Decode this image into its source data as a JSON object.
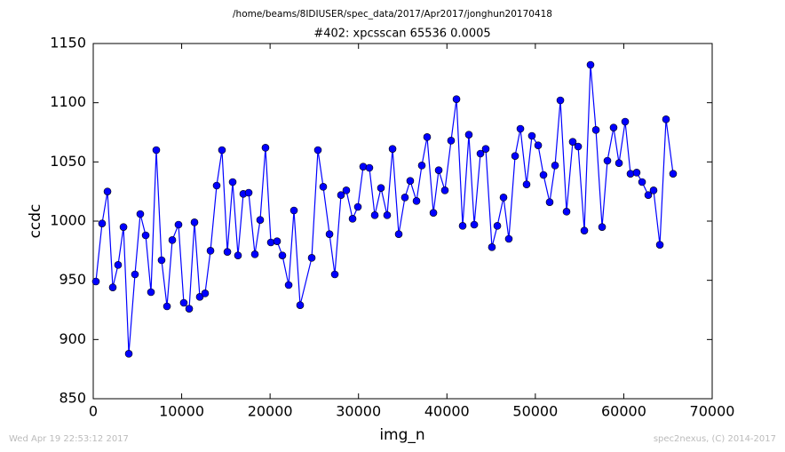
{
  "chart_data": {
    "type": "line",
    "header": "/home/beams/8IDIUSER/spec_data/2017/Apr2017/jonghun20170418",
    "title": "#402: xpcsscan 65536 0.0005",
    "xlabel": "img_n",
    "ylabel": "ccdc",
    "footer_left": "Wed Apr 19 22:53:12 2017",
    "footer_right": "spec2nexus, (C) 2014-2017",
    "xlim": [
      0,
      70000
    ],
    "xticks": [
      0,
      10000,
      20000,
      30000,
      40000,
      50000,
      60000,
      70000
    ],
    "ylim": [
      850,
      1150
    ],
    "yticks": [
      850,
      900,
      950,
      1000,
      1050,
      1100,
      1150
    ],
    "color": "#0000ff",
    "x": [
      300,
      1000,
      1610,
      2210,
      2810,
      3420,
      4020,
      4720,
      5320,
      5930,
      6530,
      7130,
      7730,
      8340,
      8940,
      9640,
      10240,
      10850,
      11450,
      12050,
      12650,
      13260,
      13960,
      14560,
      15170,
      15770,
      16370,
      16970,
      17580,
      18280,
      18880,
      19480,
      20090,
      20790,
      21390,
      22100,
      22700,
      23400,
      24710,
      25410,
      26010,
      26720,
      27320,
      28020,
      28620,
      29330,
      29930,
      30530,
      31230,
      31840,
      32540,
      33240,
      33850,
      34550,
      35250,
      35850,
      36560,
      37160,
      37760,
      38470,
      39070,
      39770,
      40470,
      41080,
      41780,
      42480,
      43090,
      43790,
      44390,
      45090,
      45700,
      46400,
      47000,
      47710,
      48310,
      49010,
      49610,
      50320,
      50920,
      51620,
      52230,
      52830,
      53530,
      54230,
      54840,
      55540,
      56240,
      56850,
      57550,
      58150,
      58850,
      59460,
      60160,
      60760,
      61460,
      62070,
      62770,
      63370,
      64080,
      64780,
      65580
    ],
    "y": [
      949,
      998,
      1025,
      944,
      963,
      995,
      888,
      955,
      1006,
      988,
      940,
      1060,
      967,
      928,
      984,
      997,
      931,
      926,
      999,
      936,
      939,
      975,
      1030,
      1060,
      974,
      1033,
      971,
      1023,
      1024,
      972,
      1001,
      1062,
      982,
      983,
      971,
      946,
      1009,
      929,
      969,
      1060,
      1029,
      989,
      955,
      1022,
      1026,
      1002,
      1012,
      1046,
      1045,
      1005,
      1028,
      1005,
      1061,
      989,
      1020,
      1034,
      1017,
      1047,
      1071,
      1007,
      1043,
      1026,
      1068,
      1103,
      996,
      1073,
      997,
      1057,
      1061,
      978,
      996,
      1020,
      985,
      1055,
      1078,
      1031,
      1072,
      1064,
      1039,
      1016,
      1047,
      1102,
      1008,
      1067,
      1063,
      992,
      1132,
      1077,
      995,
      1051,
      1079,
      1049,
      1084,
      1040,
      1041,
      1033,
      1022,
      1026,
      980,
      1086,
      1040
    ]
  }
}
